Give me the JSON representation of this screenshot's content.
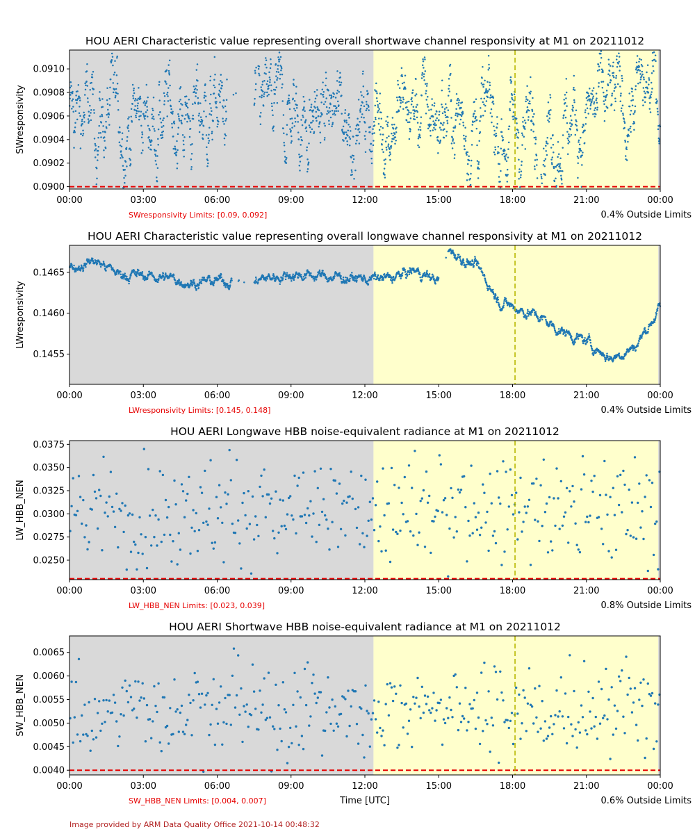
{
  "credit": "Image provided by ARM Data Quality Office 2021-10-14 00:48:32",
  "xlabel": "Time [UTC]",
  "x_tick_labels": [
    "00:00",
    "03:00",
    "06:00",
    "09:00",
    "12:00",
    "15:00",
    "18:00",
    "21:00",
    "00:00"
  ],
  "colors": {
    "points": "#1f77b4",
    "night_bg": "#d9d9d9",
    "day_bg": "#ffffcc",
    "limit_line": "#e60000",
    "marker_line": "#b8b800"
  },
  "chart_data": [
    {
      "type": "scatter",
      "title": "HOU AERI Characteristic value representing overall shortwave channel responsivity at M1 on 20211012",
      "ylabel": "SWresponsivity",
      "x_unit": "hours UTC",
      "xlim": [
        0,
        24
      ],
      "ylim": [
        0.08998,
        0.09116
      ],
      "yticks": [
        0.09,
        0.0902,
        0.0904,
        0.0906,
        0.0908,
        0.091
      ],
      "ytick_labels": [
        "0.0900",
        "0.0902",
        "0.0904",
        "0.0906",
        "0.0908",
        "0.0910"
      ],
      "limits": [
        0.09,
        0.092
      ],
      "limits_label": "SWresponsivity Limits: [0.09, 0.092]",
      "outside_label": "0.4% Outside Limits",
      "night_end_hour": 12.35,
      "day_end_hour": 23.92,
      "marker_hour": 18.1,
      "series": [
        {
          "points_per_hour": 90,
          "noise": 0.00023,
          "gaps": [
            [
              6.4,
              7.5
            ]
          ],
          "baseline": [
            [
              0,
              0.09058
            ],
            [
              3,
              0.09059
            ],
            [
              6,
              0.09063
            ],
            [
              9,
              0.0906
            ],
            [
              12,
              0.0906
            ],
            [
              14,
              0.09065
            ],
            [
              16,
              0.0906
            ],
            [
              18,
              0.09045
            ],
            [
              19.5,
              0.09053
            ],
            [
              21,
              0.0906
            ],
            [
              22.5,
              0.09068
            ],
            [
              24,
              0.09082
            ]
          ]
        }
      ]
    },
    {
      "type": "scatter",
      "title": "HOU AERI Characteristic value representing overall longwave channel responsivity at M1 on 20211012",
      "ylabel": "LWresponsivity",
      "x_unit": "hours UTC",
      "xlim": [
        0,
        24
      ],
      "ylim": [
        0.14513,
        0.14683
      ],
      "yticks": [
        0.1455,
        0.146,
        0.1465
      ],
      "ytick_labels": [
        "0.1455",
        "0.1460",
        "0.1465"
      ],
      "limits": [
        0.145,
        0.148
      ],
      "limits_label": "LWresponsivity Limits: [0.145, 0.148]",
      "outside_label": "0.4% Outside Limits",
      "night_end_hour": 12.35,
      "day_end_hour": 23.92,
      "marker_hour": 18.1,
      "series": [
        {
          "points_per_hour": 90,
          "noise": 4e-05,
          "gaps": [
            [
              6.6,
              7.5
            ],
            [
              15.0,
              15.4
            ]
          ],
          "baseline": [
            [
              0,
              0.14655
            ],
            [
              1,
              0.14665
            ],
            [
              2,
              0.14648
            ],
            [
              3.5,
              0.14645
            ],
            [
              5,
              0.14638
            ],
            [
              6.5,
              0.1464
            ],
            [
              7.5,
              0.1464
            ],
            [
              9,
              0.14648
            ],
            [
              12,
              0.14642
            ],
            [
              13,
              0.14642
            ],
            [
              14,
              0.14652
            ],
            [
              15,
              0.1464
            ],
            [
              15.5,
              0.14675
            ],
            [
              16.5,
              0.14658
            ],
            [
              17.5,
              0.14615
            ],
            [
              18,
              0.14608
            ],
            [
              19,
              0.14597
            ],
            [
              20,
              0.14578
            ],
            [
              21,
              0.14565
            ],
            [
              22,
              0.14545
            ],
            [
              23,
              0.1456
            ],
            [
              24,
              0.14607
            ]
          ]
        }
      ]
    },
    {
      "type": "scatter",
      "title": "HOU AERI Longwave HBB noise-equivalent radiance at M1 on 20211012",
      "ylabel": "LW_HBB_NEN",
      "x_unit": "hours UTC",
      "xlim": [
        0,
        24
      ],
      "ylim": [
        0.0229,
        0.0379
      ],
      "yticks": [
        0.025,
        0.0275,
        0.03,
        0.0325,
        0.035,
        0.0375
      ],
      "ytick_labels": [
        "0.0250",
        "0.0275",
        "0.0300",
        "0.0325",
        "0.0350",
        "0.0375"
      ],
      "limits": [
        0.023,
        0.039
      ],
      "limits_label": "LW_HBB_NEN Limits: [0.023, 0.039]",
      "outside_label": "0.8% Outside Limits",
      "night_end_hour": 12.35,
      "day_end_hour": 23.92,
      "marker_hour": 18.1,
      "series": [
        {
          "points_per_hour": 17,
          "noise": 0.0028,
          "gaps": [],
          "baseline": [
            [
              0,
              0.0302
            ],
            [
              24,
              0.0302
            ]
          ]
        }
      ]
    },
    {
      "type": "scatter",
      "title": "HOU AERI Shortwave HBB noise-equivalent radiance at M1 on 20211012",
      "ylabel": "SW_HBB_NEN",
      "x_unit": "hours UTC",
      "xlim": [
        0,
        24
      ],
      "ylim": [
        0.0039,
        0.00685
      ],
      "yticks": [
        0.004,
        0.0045,
        0.005,
        0.0055,
        0.006,
        0.0065
      ],
      "ytick_labels": [
        "0.0040",
        "0.0045",
        "0.0050",
        "0.0055",
        "0.0060",
        "0.0065"
      ],
      "limits": [
        0.004,
        0.007
      ],
      "limits_label": "SW_HBB_NEN Limits: [0.004, 0.007]",
      "outside_label": "0.6% Outside Limits",
      "night_end_hour": 12.35,
      "day_end_hour": 23.92,
      "marker_hour": 18.1,
      "series": [
        {
          "points_per_hour": 17,
          "noise": 0.00048,
          "gaps": [],
          "baseline": [
            [
              0,
              0.00525
            ],
            [
              24,
              0.0053
            ]
          ]
        }
      ]
    }
  ]
}
